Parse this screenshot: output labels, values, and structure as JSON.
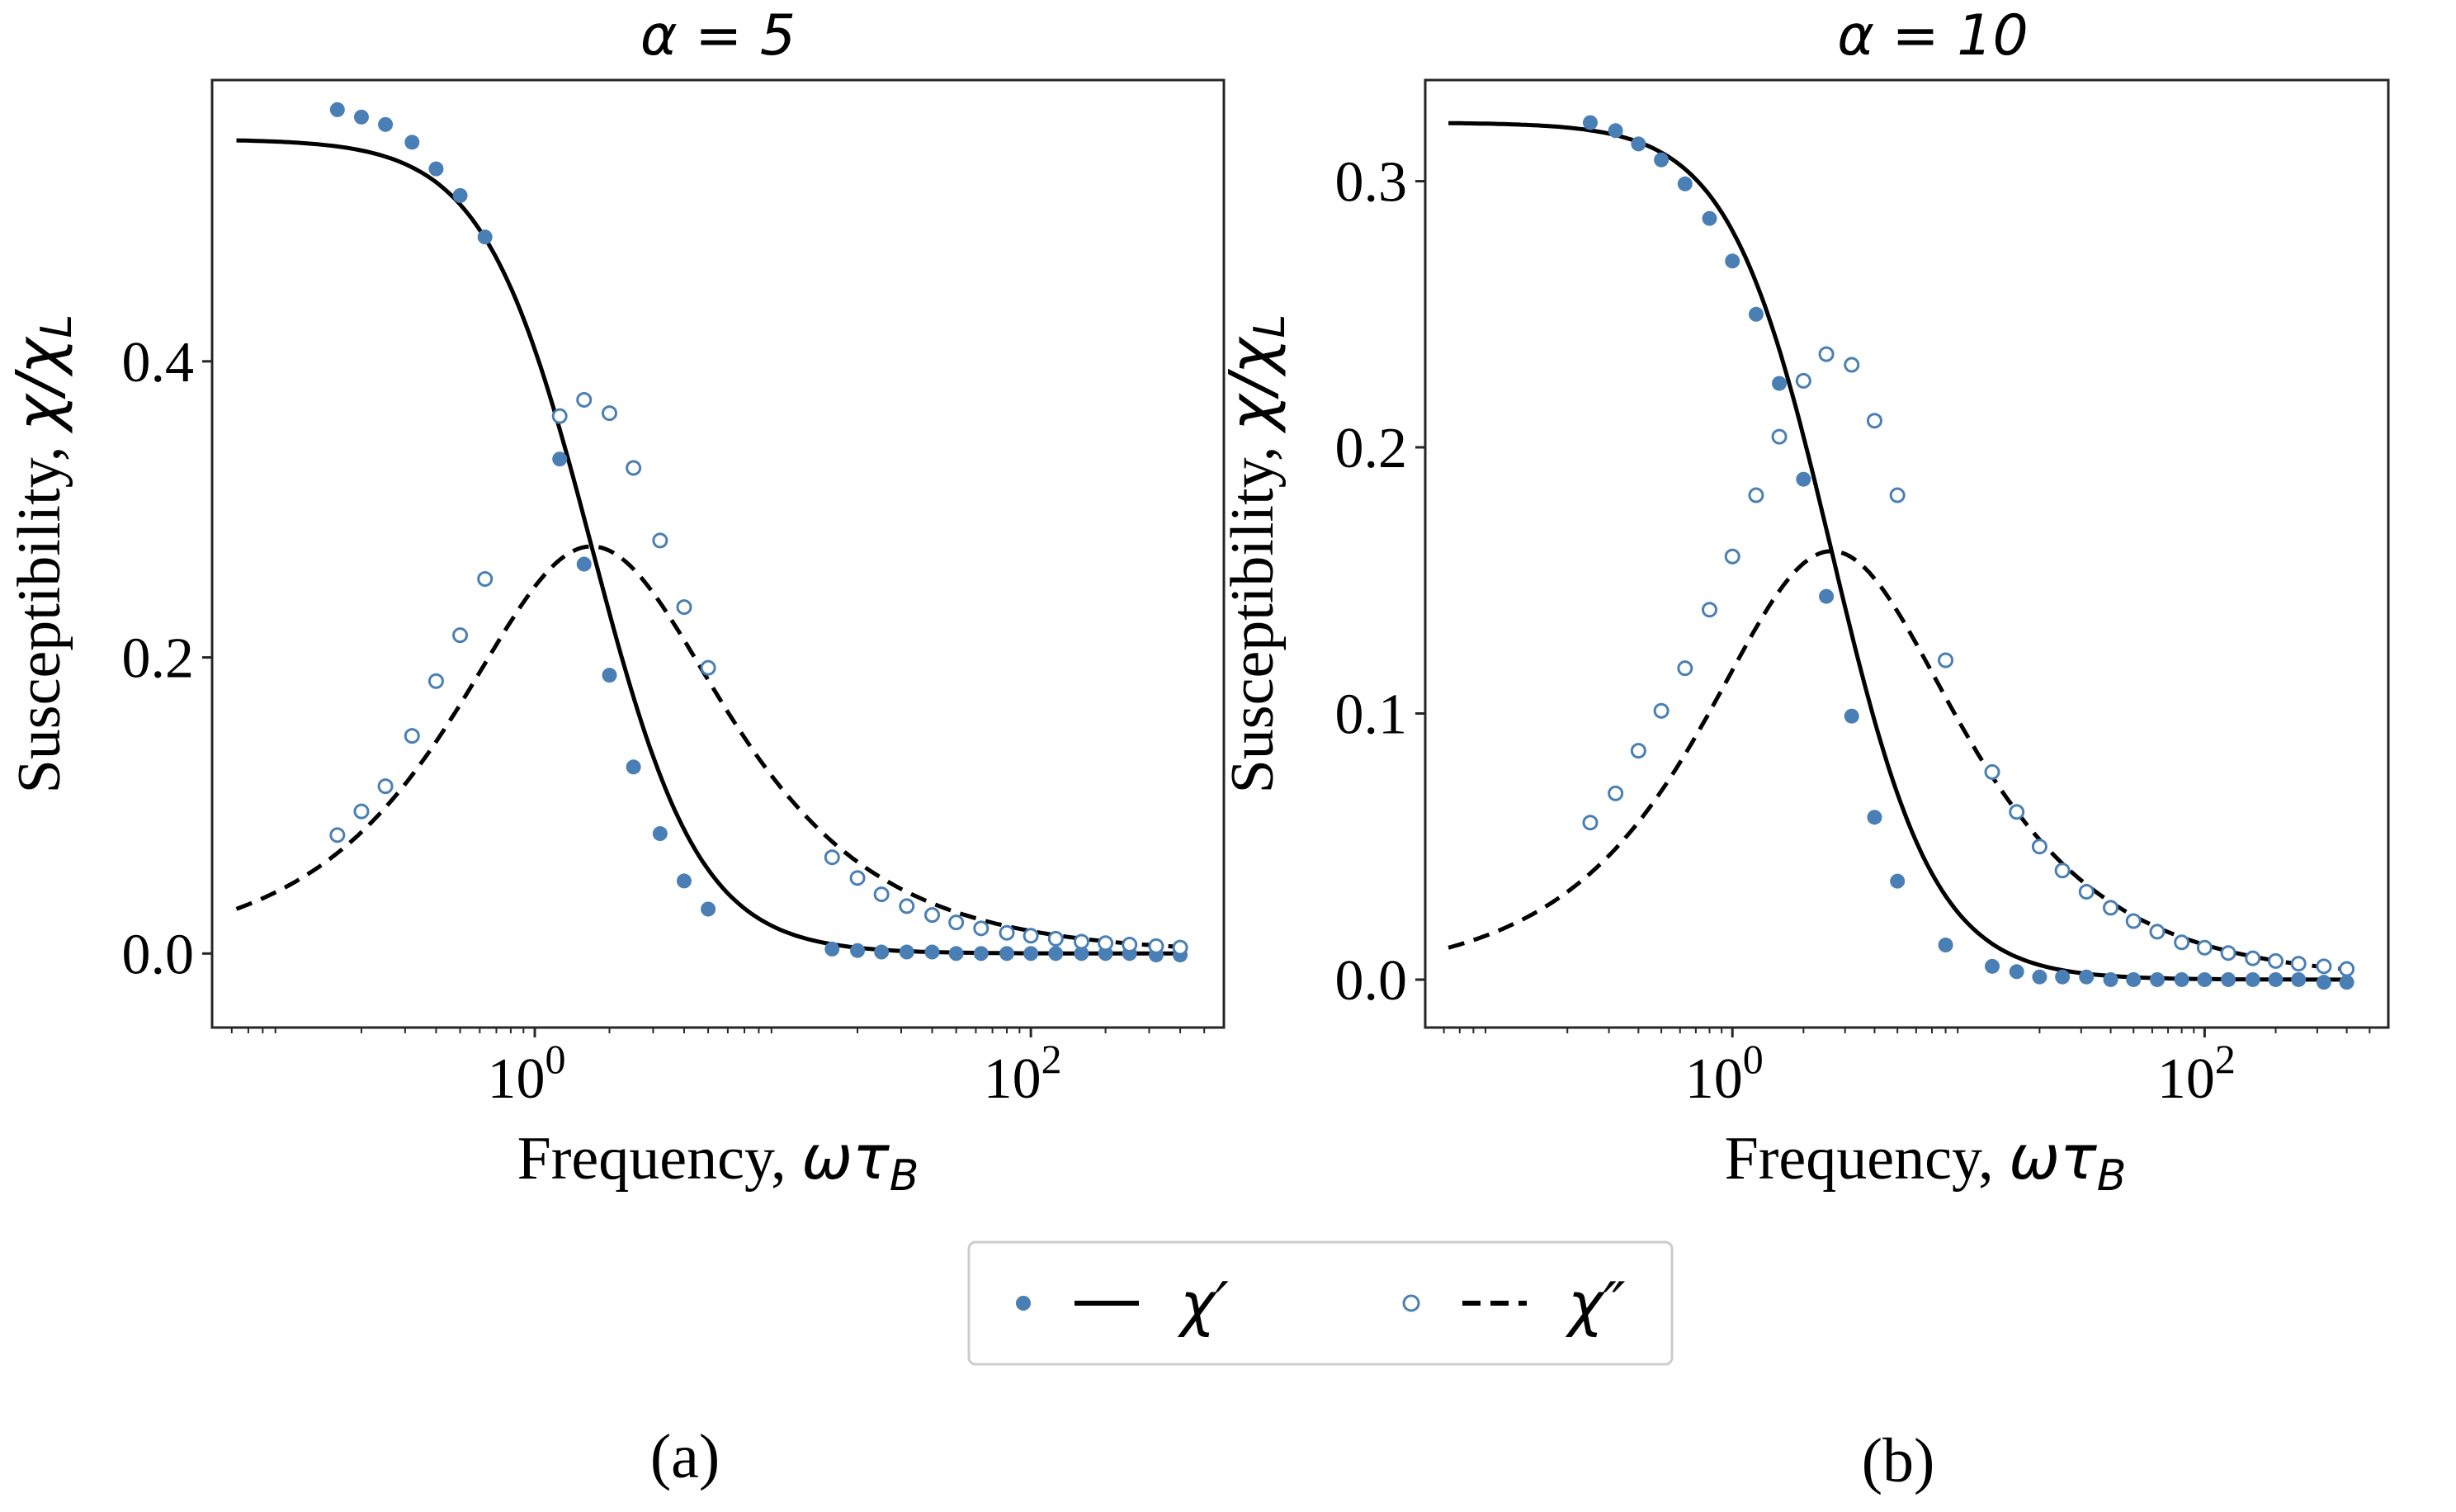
{
  "colors": {
    "marker": "#4a7fb5",
    "line": "#000000",
    "frame": "#262626"
  },
  "chart_data": [
    {
      "type": "line",
      "panel": "(a)",
      "title": "α = 5",
      "xlabel": "Frequency, ωτ_B",
      "xlabel_main": "Frequency, ",
      "xlabel_sym": "ωτ",
      "xlabel_sub": "B",
      "ylabel": "Susceptibility, χ/χ_L",
      "ylabel_main": "Susceptibility, ",
      "ylabel_sym": "χ/χ",
      "ylabel_sub": "L",
      "xscale": "log",
      "xlim": [
        0.05,
        600
      ],
      "ylim": [
        -0.05,
        0.59
      ],
      "xticks": [
        {
          "value": 1,
          "base": "10",
          "exp": "0"
        },
        {
          "value": 100,
          "base": "10",
          "exp": "2"
        }
      ],
      "yticks": [
        {
          "value": 0.0,
          "label": "0.0"
        },
        {
          "value": 0.2,
          "label": "0.2"
        },
        {
          "value": 0.4,
          "label": "0.4"
        }
      ],
      "model": {
        "chi0": 0.55,
        "tau": 0.59,
        "power": 0.88
      },
      "series": [
        {
          "name": "χ′",
          "marker": "filled-circle",
          "points": [
            [
              0.16,
              0.57
            ],
            [
              0.2,
              0.565
            ],
            [
              0.25,
              0.56
            ],
            [
              0.32,
              0.548
            ],
            [
              0.4,
              0.53
            ],
            [
              0.5,
              0.512
            ],
            [
              0.63,
              0.484
            ],
            [
              1.26,
              0.334
            ],
            [
              1.58,
              0.263
            ],
            [
              2.0,
              0.188
            ],
            [
              2.5,
              0.126
            ],
            [
              3.2,
              0.081
            ],
            [
              4.0,
              0.049
            ],
            [
              5.0,
              0.03
            ],
            [
              15.8,
              0.003
            ],
            [
              20,
              0.002
            ],
            [
              25,
              0.001
            ],
            [
              31.6,
              0.001
            ],
            [
              40,
              0.001
            ],
            [
              50,
              0.0
            ],
            [
              63,
              0.0
            ],
            [
              80,
              0.0
            ],
            [
              100,
              0.0
            ],
            [
              126,
              0.0
            ],
            [
              160,
              0.0
            ],
            [
              200,
              0.0
            ],
            [
              250,
              0.0
            ],
            [
              320,
              -0.001
            ],
            [
              400,
              -0.001
            ]
          ]
        },
        {
          "name": "χ″",
          "marker": "open-circle",
          "points": [
            [
              0.16,
              0.08
            ],
            [
              0.2,
              0.096
            ],
            [
              0.25,
              0.113
            ],
            [
              0.32,
              0.147
            ],
            [
              0.4,
              0.184
            ],
            [
              0.5,
              0.215
            ],
            [
              0.63,
              0.253
            ],
            [
              1.26,
              0.363
            ],
            [
              1.58,
              0.374
            ],
            [
              2.0,
              0.365
            ],
            [
              2.5,
              0.328
            ],
            [
              3.2,
              0.279
            ],
            [
              4.0,
              0.234
            ],
            [
              5.0,
              0.193
            ],
            [
              15.8,
              0.065
            ],
            [
              20,
              0.051
            ],
            [
              25,
              0.04
            ],
            [
              31.6,
              0.032
            ],
            [
              40,
              0.026
            ],
            [
              50,
              0.021
            ],
            [
              63,
              0.017
            ],
            [
              80,
              0.014
            ],
            [
              100,
              0.012
            ],
            [
              126,
              0.01
            ],
            [
              160,
              0.008
            ],
            [
              200,
              0.007
            ],
            [
              250,
              0.006
            ],
            [
              320,
              0.005
            ],
            [
              400,
              0.004
            ]
          ]
        },
        {
          "name": "χ′",
          "style": "solid",
          "source": "model-real"
        },
        {
          "name": "χ″",
          "style": "dashed",
          "source": "model-imag"
        }
      ]
    },
    {
      "type": "line",
      "panel": "(b)",
      "title": "α = 10",
      "xlabel": "Frequency, ωτ_B",
      "xlabel_main": "Frequency, ",
      "xlabel_sym": "ωτ",
      "xlabel_sub": "B",
      "ylabel": "Susceptibility, χ/χ_L",
      "ylabel_main": "Susceptibility, ",
      "ylabel_sym": "χ/χ",
      "ylabel_sub": "L",
      "xscale": "log",
      "xlim": [
        0.05,
        600
      ],
      "ylim": [
        -0.018,
        0.338
      ],
      "xticks": [
        {
          "value": 1,
          "base": "10",
          "exp": "0"
        },
        {
          "value": 100,
          "base": "10",
          "exp": "2"
        }
      ],
      "yticks": [
        {
          "value": 0.0,
          "label": "0.0"
        },
        {
          "value": 0.1,
          "label": "0.1"
        },
        {
          "value": 0.2,
          "label": "0.2"
        },
        {
          "value": 0.3,
          "label": "0.3"
        }
      ],
      "model": {
        "chi0": 0.322,
        "tau": 0.38,
        "power": 0.88
      },
      "series": [
        {
          "name": "χ′",
          "marker": "filled-circle",
          "points": [
            [
              0.25,
              0.322
            ],
            [
              0.32,
              0.319
            ],
            [
              0.4,
              0.314
            ],
            [
              0.5,
              0.308
            ],
            [
              0.63,
              0.299
            ],
            [
              0.8,
              0.286
            ],
            [
              1.0,
              0.27
            ],
            [
              1.26,
              0.25
            ],
            [
              1.58,
              0.224
            ],
            [
              2.0,
              0.188
            ],
            [
              2.5,
              0.144
            ],
            [
              3.2,
              0.099
            ],
            [
              4.0,
              0.061
            ],
            [
              5.0,
              0.037
            ],
            [
              8.0,
              0.013
            ],
            [
              12.6,
              0.005
            ],
            [
              16,
              0.003
            ],
            [
              20,
              0.001
            ],
            [
              25,
              0.001
            ],
            [
              31.6,
              0.001
            ],
            [
              40,
              0.0
            ],
            [
              50,
              0.0
            ],
            [
              63,
              0.0
            ],
            [
              80,
              0.0
            ],
            [
              100,
              0.0
            ],
            [
              126,
              0.0
            ],
            [
              160,
              0.0
            ],
            [
              200,
              0.0
            ],
            [
              250,
              0.0
            ],
            [
              320,
              -0.001
            ],
            [
              400,
              -0.001
            ]
          ]
        },
        {
          "name": "χ″",
          "marker": "open-circle",
          "points": [
            [
              0.25,
              0.059
            ],
            [
              0.32,
              0.07
            ],
            [
              0.4,
              0.086
            ],
            [
              0.5,
              0.101
            ],
            [
              0.63,
              0.117
            ],
            [
              0.8,
              0.139
            ],
            [
              1.0,
              0.159
            ],
            [
              1.26,
              0.182
            ],
            [
              1.58,
              0.204
            ],
            [
              2.0,
              0.225
            ],
            [
              2.5,
              0.235
            ],
            [
              3.2,
              0.231
            ],
            [
              4.0,
              0.21
            ],
            [
              5.0,
              0.182
            ],
            [
              8.0,
              0.12
            ],
            [
              12.6,
              0.078
            ],
            [
              16,
              0.063
            ],
            [
              20,
              0.05
            ],
            [
              25,
              0.041
            ],
            [
              31.6,
              0.033
            ],
            [
              40,
              0.027
            ],
            [
              50,
              0.022
            ],
            [
              63,
              0.018
            ],
            [
              80,
              0.014
            ],
            [
              100,
              0.012
            ],
            [
              126,
              0.01
            ],
            [
              160,
              0.008
            ],
            [
              200,
              0.007
            ],
            [
              250,
              0.006
            ],
            [
              320,
              0.005
            ],
            [
              400,
              0.004
            ]
          ]
        },
        {
          "name": "χ′",
          "style": "solid",
          "source": "model-real"
        },
        {
          "name": "χ″",
          "style": "dashed",
          "source": "model-imag"
        }
      ]
    }
  ],
  "legend": {
    "placement": "bottom-center",
    "entries": [
      {
        "label": "χ′",
        "marker": "filled-circle",
        "line": "solid"
      },
      {
        "label": "χ″",
        "marker": "open-circle",
        "line": "dashed"
      }
    ]
  }
}
